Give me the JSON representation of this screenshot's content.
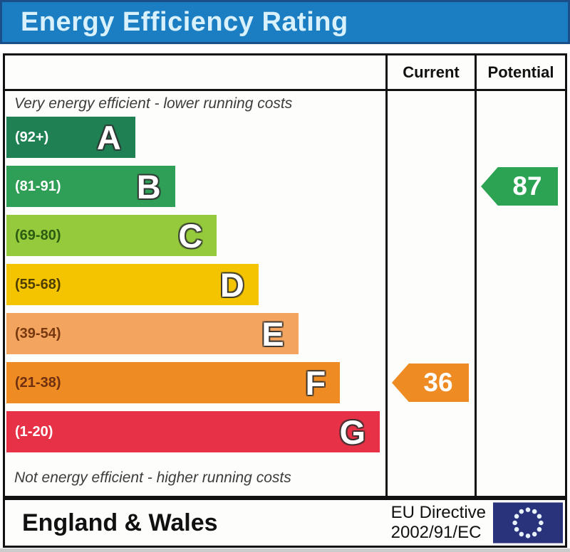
{
  "title": "Energy Efficiency Rating",
  "table": {
    "columns": {
      "current": "Current",
      "potential": "Potential"
    }
  },
  "captions": {
    "top": "Very energy efficient - lower running costs",
    "bottom": "Not energy efficient - higher running costs"
  },
  "chart_data": {
    "type": "bar",
    "title": "Energy Efficiency Rating",
    "bands": [
      {
        "letter": "A",
        "range": "(92+)",
        "color": "#1e8053",
        "range_text_color": "#ffffff",
        "width_pct": 34
      },
      {
        "letter": "B",
        "range": "(81-91)",
        "color": "#2f9e56",
        "range_text_color": "#ffffff",
        "width_pct": 44.5
      },
      {
        "letter": "C",
        "range": "(69-80)",
        "color": "#95ca3c",
        "range_text_color": "#2b5c12",
        "width_pct": 55.5
      },
      {
        "letter": "D",
        "range": "(55-68)",
        "color": "#f5c400",
        "range_text_color": "#4d3e00",
        "width_pct": 66.5
      },
      {
        "letter": "E",
        "range": "(39-54)",
        "color": "#f3a45f",
        "range_text_color": "#77380f",
        "width_pct": 77
      },
      {
        "letter": "F",
        "range": "(21-38)",
        "color": "#ee8b22",
        "range_text_color": "#6e3010",
        "width_pct": 88
      },
      {
        "letter": "G",
        "range": "(1-20)",
        "color": "#e63147",
        "range_text_color": "#ffffff",
        "width_pct": 98.5
      }
    ],
    "current": {
      "value": 36,
      "band": "F",
      "color": "#ee8b22"
    },
    "potential": {
      "value": 87,
      "band": "B",
      "color": "#2ba353"
    }
  },
  "footer": {
    "region": "England & Wales",
    "directive_line1": "EU Directive",
    "directive_line2": "2002/91/EC",
    "eu_flag": {
      "background": "#29337c",
      "star_color": "#e8f2fa"
    }
  }
}
